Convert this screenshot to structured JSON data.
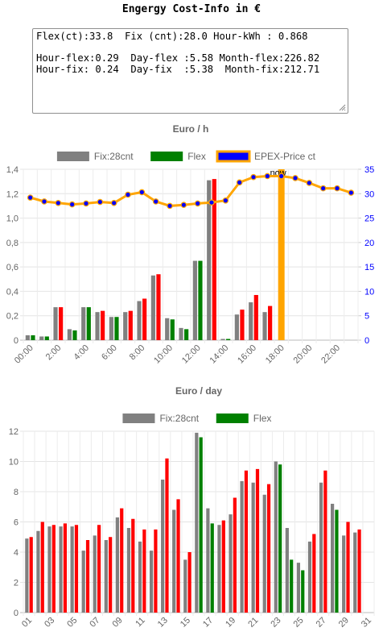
{
  "page": {
    "title": "Engergy Cost-Info in €"
  },
  "info": {
    "line1": "Flex(ct):33.8  Fix (cnt):28.0 Hour-kWh : 0.868",
    "line2": "",
    "line3": "Hour-flex:0.29  Day-flex :5.58 Month-flex:226.82",
    "line4": "Hour-fix: 0.24  Day-fix  :5.38  Month-fix:212.71"
  },
  "colors": {
    "fix": "#808080",
    "flex_green": "#008000",
    "flex_red": "#ff0000",
    "price_line": "#ffa500",
    "price_point": "#0000ff",
    "now_bar": "#ffa500",
    "right_axis": "#0000ff"
  },
  "chart_data": [
    {
      "type": "bar",
      "title": "Euro / h",
      "categories": [
        "00:00",
        "01:00",
        "02:00",
        "03:00",
        "04:00",
        "05:00",
        "06:00",
        "07:00",
        "08:00",
        "09:00",
        "10:00",
        "11:00",
        "12:00",
        "13:00",
        "14:00",
        "15:00",
        "16:00",
        "17:00",
        "18:00",
        "19:00",
        "20:00",
        "21:00",
        "22:00",
        "23:00"
      ],
      "tick_labels": [
        "00:00",
        "2:00",
        "4:00",
        "6:00",
        "8:00",
        "10:00",
        "12:00",
        "14:00",
        "16:00",
        "18:00",
        "20:00",
        "22:00"
      ],
      "legend": [
        "Fix:28cnt",
        "Flex",
        "EPEX-Price ct"
      ],
      "legend_position": "top",
      "series": [
        {
          "name": "Fix:28cnt",
          "type": "bar",
          "axis": "left",
          "values": [
            0.04,
            0.03,
            0.27,
            0.09,
            0.27,
            0.23,
            0.19,
            0.23,
            0.32,
            0.53,
            0.18,
            0.1,
            0.65,
            1.31,
            0.01,
            0.21,
            0.31,
            0.23,
            null,
            null,
            null,
            null,
            null,
            null
          ]
        },
        {
          "name": "Flex",
          "type": "bar",
          "axis": "left",
          "values": [
            0.04,
            0.03,
            0.27,
            0.08,
            0.27,
            0.24,
            0.19,
            0.24,
            0.34,
            0.54,
            0.17,
            0.09,
            0.65,
            1.32,
            0.01,
            0.25,
            0.37,
            0.28,
            null,
            null,
            null,
            null,
            null,
            null
          ],
          "colors": [
            "#008000",
            "#008000",
            "#ff0000",
            "#008000",
            "#008000",
            "#ff0000",
            "#008000",
            "#ff0000",
            "#ff0000",
            "#ff0000",
            "#008000",
            "#008000",
            "#008000",
            "#ff0000",
            "#008000",
            "#ff0000",
            "#ff0000",
            "#ff0000",
            null,
            null,
            null,
            null,
            null,
            null
          ]
        },
        {
          "name": "EPEX-Price ct",
          "type": "line",
          "axis": "right",
          "values": [
            29.2,
            28.4,
            28.1,
            27.8,
            28.0,
            28.3,
            28.1,
            29.8,
            30.3,
            28.4,
            27.5,
            27.7,
            28.0,
            28.2,
            28.6,
            32.3,
            33.4,
            33.6,
            33.6,
            33.2,
            32.2,
            31.1,
            31.1,
            30.2
          ]
        }
      ],
      "now_marker": {
        "label": "now",
        "index": 18
      },
      "ylim": [
        0,
        1.4
      ],
      "y_ticks": [
        "0",
        "0,2",
        "0,4",
        "0,6",
        "0,8",
        "1,0",
        "1,2",
        "1,4"
      ],
      "y2lim": [
        0,
        35
      ],
      "y2_ticks": [
        "0",
        "5",
        "10",
        "15",
        "20",
        "25",
        "30",
        "35"
      ],
      "grid": true
    },
    {
      "type": "bar",
      "title": "Euro / day",
      "categories": [
        "01",
        "02",
        "03",
        "04",
        "05",
        "06",
        "07",
        "08",
        "09",
        "10",
        "11",
        "12",
        "13",
        "14",
        "15",
        "16",
        "17",
        "18",
        "19",
        "20",
        "21",
        "22",
        "23",
        "24",
        "25",
        "26",
        "27",
        "28",
        "29",
        "30",
        "31"
      ],
      "tick_labels": [
        "01",
        "03",
        "05",
        "07",
        "09",
        "11",
        "13",
        "15",
        "17",
        "19",
        "21",
        "23",
        "25",
        "27",
        "29",
        "31"
      ],
      "legend": [
        "Fix:28cnt",
        "Flex"
      ],
      "legend_position": "top",
      "series": [
        {
          "name": "Fix:28cnt",
          "values": [
            4.9,
            5.4,
            5.7,
            5.7,
            5.7,
            4.1,
            5.1,
            4.8,
            6.3,
            5.6,
            4.7,
            4.1,
            8.8,
            6.8,
            3.5,
            11.9,
            6.9,
            5.8,
            6.5,
            8.7,
            8.6,
            7.8,
            10.0,
            5.6,
            3.3,
            4.7,
            8.6,
            7.2,
            5.1,
            5.3,
            null
          ]
        },
        {
          "name": "Flex",
          "values": [
            5.0,
            6.0,
            5.8,
            5.9,
            5.8,
            4.8,
            5.8,
            5.0,
            6.9,
            6.2,
            5.5,
            5.5,
            10.2,
            7.5,
            4.0,
            11.6,
            5.9,
            6.1,
            7.6,
            9.4,
            9.5,
            8.5,
            9.8,
            3.5,
            2.8,
            5.2,
            9.4,
            6.8,
            6.0,
            5.5,
            null
          ],
          "colors": [
            "#ff0000",
            "#ff0000",
            "#ff0000",
            "#ff0000",
            "#ff0000",
            "#ff0000",
            "#ff0000",
            "#ff0000",
            "#ff0000",
            "#ff0000",
            "#ff0000",
            "#ff0000",
            "#ff0000",
            "#ff0000",
            "#ff0000",
            "#008000",
            "#008000",
            "#ff0000",
            "#ff0000",
            "#ff0000",
            "#ff0000",
            "#ff0000",
            "#008000",
            "#008000",
            "#008000",
            "#ff0000",
            "#ff0000",
            "#008000",
            "#ff0000",
            "#ff0000",
            null
          ]
        }
      ],
      "ylim": [
        0,
        12
      ],
      "y_ticks": [
        "0",
        "2",
        "4",
        "6",
        "8",
        "10",
        "12"
      ],
      "grid": true
    }
  ]
}
